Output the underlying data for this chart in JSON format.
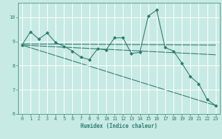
{
  "xlabel": "Humidex (Indice chaleur)",
  "background_color": "#c8eae4",
  "grid_color": "#ffffff",
  "line_color": "#2e7d6e",
  "xlim": [
    -0.5,
    23.5
  ],
  "ylim": [
    6,
    10.6
  ],
  "yticks": [
    6,
    7,
    8,
    9,
    10
  ],
  "xticks": [
    0,
    1,
    2,
    3,
    4,
    5,
    6,
    7,
    8,
    9,
    10,
    11,
    12,
    13,
    14,
    15,
    16,
    17,
    18,
    19,
    20,
    21,
    22,
    23
  ],
  "series1_x": [
    0,
    1,
    2,
    3,
    4,
    5,
    6,
    7,
    8,
    9,
    10,
    11,
    12,
    13,
    14,
    15,
    16,
    17,
    18,
    19,
    20,
    21,
    22,
    23
  ],
  "series1_y": [
    8.85,
    9.4,
    9.1,
    9.35,
    8.95,
    8.8,
    8.6,
    8.35,
    8.25,
    8.7,
    8.65,
    9.15,
    9.15,
    8.5,
    8.55,
    10.05,
    10.3,
    8.75,
    8.6,
    8.1,
    7.55,
    7.25,
    6.6,
    6.35
  ],
  "trend1_x": [
    0,
    23
  ],
  "trend1_y": [
    8.85,
    8.45
  ],
  "trend2_x": [
    0,
    23
  ],
  "trend2_y": [
    8.9,
    8.85
  ],
  "trend3_x": [
    0,
    23
  ],
  "trend3_y": [
    8.85,
    6.35
  ]
}
